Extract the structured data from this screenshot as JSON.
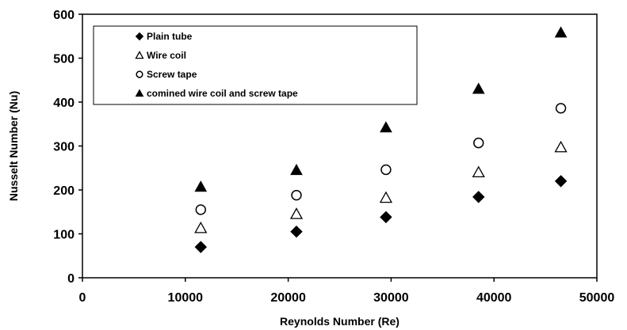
{
  "chart_data": {
    "type": "scatter",
    "title": "",
    "xlabel": "Reynolds Number (Re)",
    "ylabel": "Nusselt Number (Nu)",
    "xlim": [
      0,
      50000
    ],
    "ylim": [
      0,
      600
    ],
    "xticks": [
      0,
      10000,
      20000,
      30000,
      40000,
      50000
    ],
    "yticks": [
      0,
      100,
      200,
      300,
      400,
      500,
      600
    ],
    "grid": false,
    "legend_position": "top-left",
    "series": [
      {
        "name": "Plain tube",
        "marker": "filled-diamond",
        "color": "#000000",
        "points": [
          [
            11500,
            70
          ],
          [
            20800,
            105
          ],
          [
            29500,
            138
          ],
          [
            38500,
            184
          ],
          [
            46500,
            220
          ]
        ]
      },
      {
        "name": "Wire coil",
        "marker": "open-triangle",
        "color": "#000000",
        "points": [
          [
            11500,
            113
          ],
          [
            20800,
            145
          ],
          [
            29500,
            182
          ],
          [
            38500,
            240
          ],
          [
            46500,
            297
          ]
        ]
      },
      {
        "name": "Screw tape",
        "marker": "open-circle",
        "color": "#000000",
        "points": [
          [
            11500,
            155
          ],
          [
            20800,
            188
          ],
          [
            29500,
            246
          ],
          [
            38500,
            307
          ],
          [
            46500,
            386
          ]
        ]
      },
      {
        "name": "comined wire coil and screw tape",
        "marker": "filled-triangle",
        "color": "#000000",
        "points": [
          [
            11500,
            207
          ],
          [
            20800,
            245
          ],
          [
            29500,
            342
          ],
          [
            38500,
            430
          ],
          [
            46500,
            558
          ]
        ]
      }
    ]
  }
}
